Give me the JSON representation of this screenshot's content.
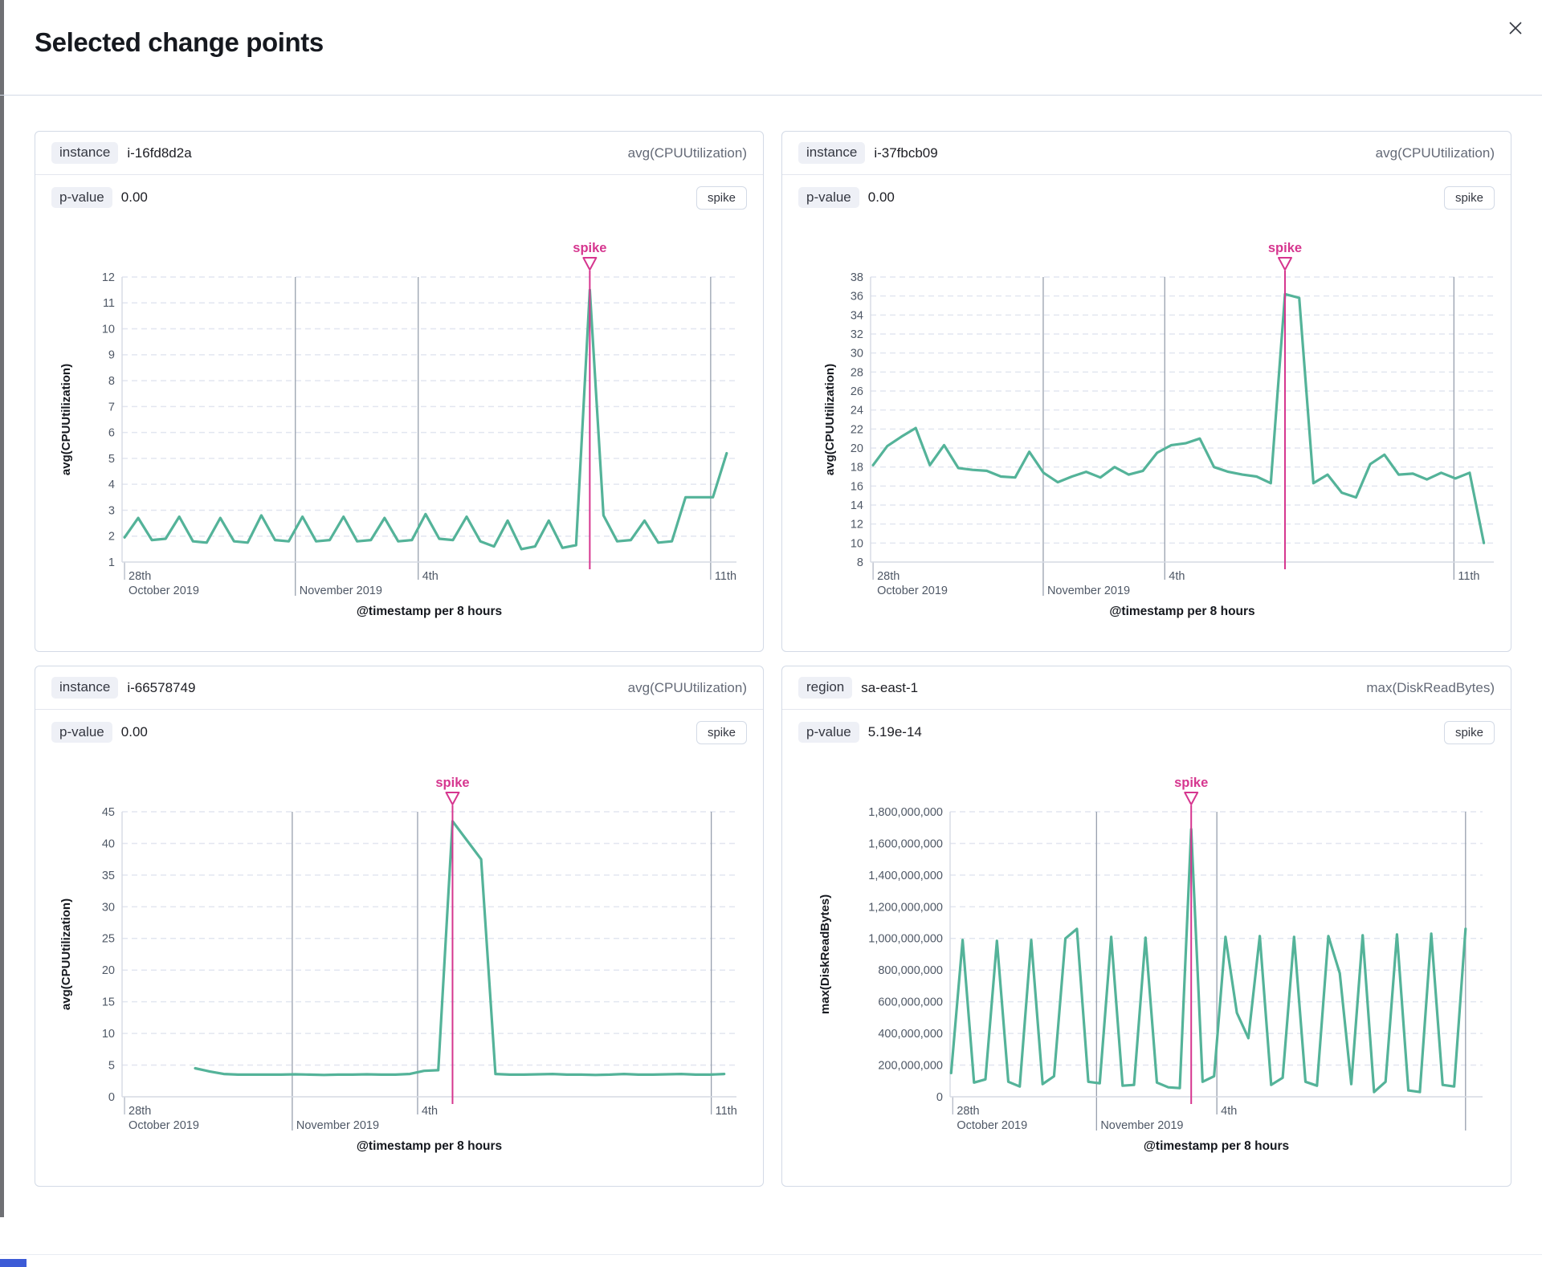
{
  "modal": {
    "title": "Selected change points"
  },
  "colors": {
    "series_green": "#54b399",
    "accent_pink": "#d6368f",
    "dashed_grid": "#e2e6f0",
    "date_grid": "#98a0ae",
    "axis_line": "#d6dae3",
    "tick_text": "#4f5866",
    "badge_bg": "#eef0f6"
  },
  "charts": [
    {
      "field_label": "instance",
      "field_value": "i-16fd8d2a",
      "metric": "avg(CPUUtilization)",
      "p_value_label": "p-value",
      "p_value": "0.00",
      "spike_button": "spike",
      "chart_data": {
        "type": "line",
        "annotation": "spike",
        "y_axis": {
          "title": "avg(CPUUtilization)",
          "min": 1,
          "max": 12,
          "step": 1,
          "format": "plain"
        },
        "x_axis": {
          "title": "@timestamp per 8 hours",
          "ticks": [
            {
              "frac": 0.004,
              "line1": "28th",
              "line2": "October 2019",
              "grid": false
            },
            {
              "frac": 0.282,
              "line1": "",
              "line2": "November 2019",
              "grid": true
            },
            {
              "frac": 0.482,
              "line1": "4th",
              "line2": "",
              "grid": true
            },
            {
              "frac": 0.958,
              "line1": "11th",
              "line2": "",
              "grid": true
            }
          ]
        },
        "x_start_frac": 0.004,
        "x_end_frac": 0.984,
        "spike_index": 34,
        "values": [
          1.95,
          2.7,
          1.85,
          1.9,
          2.75,
          1.8,
          1.75,
          2.7,
          1.8,
          1.75,
          2.8,
          1.85,
          1.8,
          2.75,
          1.8,
          1.85,
          2.75,
          1.8,
          1.85,
          2.7,
          1.8,
          1.85,
          2.85,
          1.9,
          1.85,
          2.75,
          1.8,
          1.6,
          2.6,
          1.5,
          1.6,
          2.6,
          1.55,
          1.65,
          11.5,
          2.8,
          1.8,
          1.85,
          2.6,
          1.75,
          1.8,
          3.5,
          3.5,
          3.5,
          5.2
        ]
      }
    },
    {
      "field_label": "instance",
      "field_value": "i-37fbcb09",
      "metric": "avg(CPUUtilization)",
      "p_value_label": "p-value",
      "p_value": "0.00",
      "spike_button": "spike",
      "chart_data": {
        "type": "line",
        "annotation": "spike",
        "y_axis": {
          "title": "avg(CPUUtilization)",
          "min": 8,
          "max": 38,
          "step": 2,
          "format": "plain"
        },
        "x_axis": {
          "title": "@timestamp per 8 hours",
          "ticks": [
            {
              "frac": 0.004,
              "line1": "28th",
              "line2": "October 2019",
              "grid": false
            },
            {
              "frac": 0.277,
              "line1": "",
              "line2": "November 2019",
              "grid": true
            },
            {
              "frac": 0.472,
              "line1": "4th",
              "line2": "",
              "grid": true
            },
            {
              "frac": 0.936,
              "line1": "11th",
              "line2": "",
              "grid": true
            }
          ]
        },
        "x_start_frac": 0.004,
        "x_end_frac": 0.984,
        "spike_index": 29,
        "values": [
          18.2,
          20.2,
          21.2,
          22.1,
          18.2,
          20.3,
          17.9,
          17.7,
          17.6,
          17.0,
          16.9,
          19.6,
          17.4,
          16.4,
          17.0,
          17.5,
          16.9,
          18.0,
          17.2,
          17.6,
          19.5,
          20.3,
          20.5,
          21.0,
          18.0,
          17.5,
          17.2,
          17.0,
          16.3,
          36.2,
          35.8,
          16.3,
          17.2,
          15.3,
          14.8,
          18.3,
          19.3,
          17.2,
          17.3,
          16.7,
          17.4,
          16.8,
          17.4,
          10.0
        ]
      }
    },
    {
      "field_label": "instance",
      "field_value": "i-66578749",
      "metric": "avg(CPUUtilization)",
      "p_value_label": "p-value",
      "p_value": "0.00",
      "spike_button": "spike",
      "chart_data": {
        "type": "line",
        "annotation": "spike",
        "y_axis": {
          "title": "avg(CPUUtilization)",
          "min": 0,
          "max": 45,
          "step": 5,
          "format": "plain"
        },
        "x_axis": {
          "title": "@timestamp per 8 hours",
          "ticks": [
            {
              "frac": 0.004,
              "line1": "28th",
              "line2": "October 2019",
              "grid": false
            },
            {
              "frac": 0.277,
              "line1": "",
              "line2": "November 2019",
              "grid": true
            },
            {
              "frac": 0.481,
              "line1": "4th",
              "line2": "",
              "grid": true
            },
            {
              "frac": 0.959,
              "line1": "11th",
              "line2": "",
              "grid": true
            }
          ]
        },
        "x_start_frac": 0.119,
        "x_end_frac": 0.98,
        "spike_index": 18,
        "values": [
          4.5,
          4.0,
          3.6,
          3.5,
          3.5,
          3.5,
          3.5,
          3.55,
          3.5,
          3.45,
          3.5,
          3.5,
          3.55,
          3.5,
          3.5,
          3.6,
          4.1,
          4.2,
          43.5,
          40.5,
          37.5,
          3.6,
          3.5,
          3.5,
          3.55,
          3.6,
          3.5,
          3.5,
          3.45,
          3.5,
          3.6,
          3.5,
          3.5,
          3.55,
          3.6,
          3.5,
          3.5,
          3.6
        ]
      }
    },
    {
      "field_label": "region",
      "field_value": "sa-east-1",
      "metric": "max(DiskReadBytes)",
      "p_value_label": "p-value",
      "p_value": "5.19e-14",
      "spike_button": "spike",
      "chart_data": {
        "type": "line",
        "annotation": "spike",
        "y_axis": {
          "title": "max(DiskReadBytes)",
          "min": 0,
          "max": 1800000000,
          "step": 200000000,
          "format": "comma"
        },
        "x_axis": {
          "title": "@timestamp per 8 hours",
          "ticks": [
            {
              "frac": 0.005,
              "line1": "28th",
              "line2": "October 2019",
              "grid": false
            },
            {
              "frac": 0.275,
              "line1": "",
              "line2": "November 2019",
              "grid": true
            },
            {
              "frac": 0.501,
              "line1": "4th",
              "line2": "",
              "grid": true
            },
            {
              "frac": 0.968,
              "line1": "",
              "line2": "",
              "grid": true
            }
          ]
        },
        "x_start_frac": 0.002,
        "x_end_frac": 0.968,
        "spike_index": 21,
        "values": [
          150000000,
          990000000,
          90000000,
          110000000,
          985000000,
          95000000,
          65000000,
          990000000,
          80000000,
          130000000,
          1000000000,
          1060000000,
          95000000,
          85000000,
          1010000000,
          70000000,
          75000000,
          1005000000,
          90000000,
          60000000,
          55000000,
          1690000000,
          95000000,
          130000000,
          1010000000,
          530000000,
          370000000,
          1015000000,
          75000000,
          120000000,
          1010000000,
          95000000,
          70000000,
          1015000000,
          780000000,
          80000000,
          1020000000,
          30000000,
          95000000,
          1025000000,
          40000000,
          30000000,
          1030000000,
          75000000,
          65000000,
          1060000000
        ]
      }
    }
  ]
}
